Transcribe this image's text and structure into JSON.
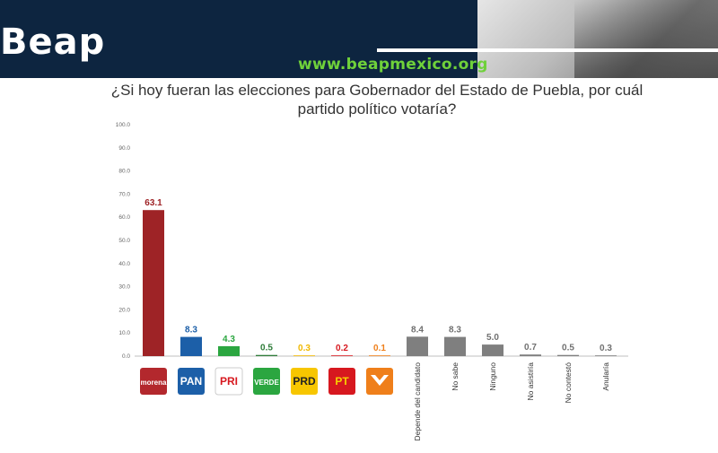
{
  "header": {
    "logo": "Beap",
    "url": "www.beapmexico.org"
  },
  "chart_data": {
    "type": "bar",
    "title": "¿Si hoy fueran las elecciones para Gobernador del Estado de Puebla, por cuál partido político votaría?",
    "xlabel": "",
    "ylabel": "",
    "ylim": [
      0,
      100
    ],
    "yticks": [
      "0.0",
      "10.0",
      "20.0",
      "30.0",
      "40.0",
      "50.0",
      "60.0",
      "70.0",
      "80.0",
      "90.0",
      "100.0"
    ],
    "grid": false,
    "categories": [
      "morena",
      "PAN",
      "PRI",
      "VERDE",
      "PRD",
      "PT",
      "MOVIMIENTO CIUDADANO",
      "Depende del candidato",
      "No sabe",
      "Ninguno",
      "No asistiría",
      "No contestó",
      "Anularía"
    ],
    "values": [
      63.1,
      8.3,
      4.3,
      0.5,
      0.3,
      0.2,
      0.1,
      8.4,
      8.3,
      5.0,
      0.7,
      0.5,
      0.3
    ],
    "value_labels": [
      "63.1",
      "8.3",
      "4.3",
      "0.5",
      "0.3",
      "0.2",
      "0.1",
      "8.4",
      "8.3",
      "5.0",
      "0.7",
      "0.5",
      "0.3"
    ],
    "colors": [
      "#9e2326",
      "#1c5fa8",
      "#2ba640",
      "#2f7d3a",
      "#f0b800",
      "#d7181f",
      "#ef7f1a",
      "#7f7f7f",
      "#7f7f7f",
      "#7f7f7f",
      "#7f7f7f",
      "#7f7f7f",
      "#7f7f7f"
    ],
    "label_colors": [
      "#9e2326",
      "#1c5fa8",
      "#2ba640",
      "#2f7d3a",
      "#f0b800",
      "#d7181f",
      "#ef7f1a",
      "#707070",
      "#707070",
      "#707070",
      "#707070",
      "#707070",
      "#707070"
    ],
    "party_logos": [
      {
        "text": "morena",
        "bg": "#b3282d",
        "fg": "#ffffff"
      },
      {
        "text": "PAN",
        "bg": "#1c5fa8",
        "fg": "#ffffff"
      },
      {
        "text": "PRI",
        "bg": "#ffffff",
        "fg": "#d7181f"
      },
      {
        "text": "VERDE",
        "bg": "#2ba640",
        "fg": "#ffffff"
      },
      {
        "text": "PRD",
        "bg": "#f7c600",
        "fg": "#222222"
      },
      {
        "text": "PT",
        "bg": "#d7181f",
        "fg": "#f7d200"
      },
      {
        "text": "",
        "bg": "#ef7f1a",
        "fg": "#ffffff"
      }
    ]
  }
}
